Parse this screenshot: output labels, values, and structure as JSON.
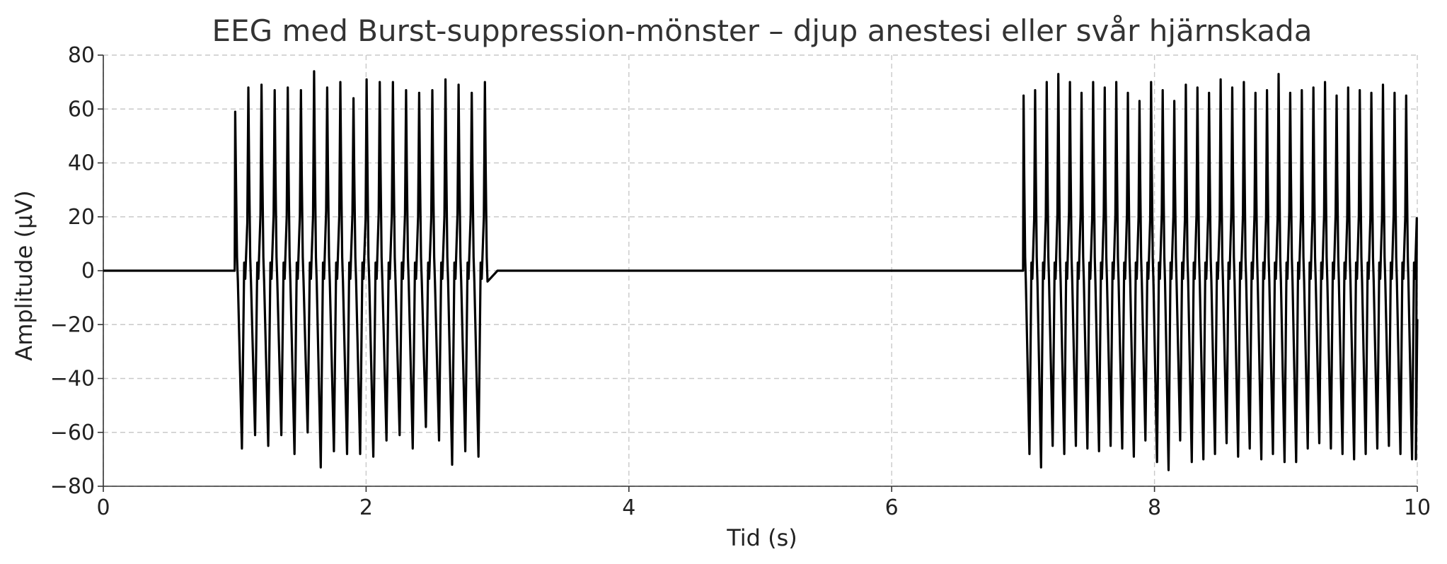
{
  "chart_data": {
    "type": "line",
    "title": "EEG med Burst-suppression-mönster – djup anestesi eller svår hjärnskada",
    "xlabel": "Tid (s)",
    "ylabel": "Amplitude (μV)",
    "xlim": [
      0,
      10
    ],
    "ylim": [
      -80,
      80
    ],
    "xticks": [
      0,
      2,
      4,
      6,
      8,
      10
    ],
    "xtick_labels": [
      "0",
      "2",
      "4",
      "6",
      "8",
      "10"
    ],
    "yticks": [
      80,
      60,
      40,
      20,
      0,
      -20,
      -40,
      -60,
      -80
    ],
    "ytick_labels": [
      "80",
      "60",
      "40",
      "20",
      "0",
      "−20",
      "−40",
      "−60",
      "−80"
    ],
    "grid": true,
    "line_color": "#000000",
    "series": [
      {
        "segments": [
          {
            "kind": "suppression",
            "x": [
              0,
              1.0
            ],
            "y": [
              0,
              0
            ]
          },
          {
            "kind": "burst",
            "x_start": 1.0,
            "x_end": 3.0,
            "peaks": [
              59,
              68,
              69,
              67,
              68,
              67,
              74,
              68,
              70,
              64,
              71,
              70,
              70,
              67,
              66,
              67,
              71,
              69,
              66,
              70
            ],
            "troughs": [
              -66,
              -61,
              -65,
              -61,
              -68,
              -60,
              -73,
              -67,
              -68,
              -68,
              -69,
              -63,
              -61,
              -66,
              -58,
              -63,
              -72,
              -67,
              -69
            ]
          },
          {
            "kind": "suppression",
            "x": [
              3.0,
              7.0
            ],
            "y": [
              0,
              0
            ]
          },
          {
            "kind": "burst",
            "x_start": 7.0,
            "x_end": 10.0,
            "peaks": [
              65,
              67,
              70,
              73,
              70,
              66,
              70,
              68,
              70,
              66,
              63,
              70,
              67,
              63,
              69,
              68,
              66,
              71,
              68,
              70,
              66,
              67,
              73,
              66,
              67,
              68,
              70,
              65,
              68,
              67,
              66,
              69,
              66,
              65
            ],
            "troughs": [
              -68,
              -73,
              -65,
              -68,
              -65,
              -66,
              -67,
              -65,
              -66,
              -69,
              -63,
              -71,
              -74,
              -63,
              -71,
              -70,
              -68,
              -64,
              -69,
              -66,
              -70,
              -68,
              -71,
              -71,
              -66,
              -64,
              -66,
              -68,
              -70,
              -68,
              -66,
              -65,
              -68,
              -70
            ],
            "end_value": -18
          }
        ]
      }
    ]
  }
}
